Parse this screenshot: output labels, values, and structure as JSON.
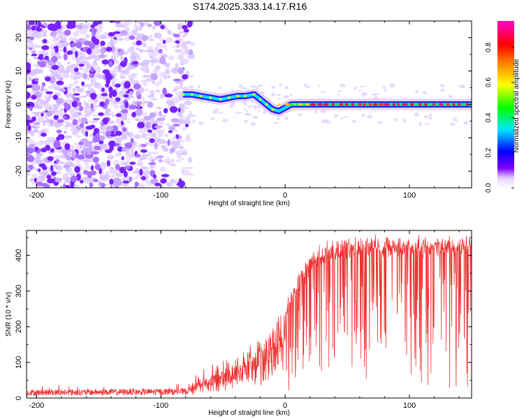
{
  "title": "S174.2025.333.14.17.R16",
  "chart_data": [
    {
      "type": "heatmap",
      "name": "spectrogram",
      "xlabel": "Height of straight line (km)",
      "ylabel": "Frequency (Hz)",
      "xlim": [
        -208,
        150
      ],
      "ylim": [
        -25,
        25
      ],
      "xticks": [
        -200,
        -100,
        0,
        100
      ],
      "yticks": [
        -20,
        -10,
        0,
        10,
        20
      ],
      "colorbar": {
        "label": "Normalized spectral amplitude",
        "range": [
          0.0,
          0.95
        ],
        "ticks": [
          0.0,
          0.2,
          0.4,
          0.6,
          0.8
        ],
        "colors": [
          "#ffffff",
          "#8000ff",
          "#0000ff",
          "#00ffff",
          "#00ff00",
          "#ffff00",
          "#ff8000",
          "#ff0000",
          "#ff00ff"
        ]
      },
      "noise_region_x": [
        -208,
        -75
      ],
      "signal_trace": {
        "x": [
          -82,
          -75,
          -68,
          -60,
          -52,
          -45,
          -38,
          -32,
          -25,
          -20,
          -15,
          -10,
          -5,
          0,
          5,
          10,
          15,
          25,
          35,
          50,
          70,
          90,
          110,
          130,
          150
        ],
        "y": [
          3,
          3,
          2.5,
          2,
          1.5,
          2,
          2.5,
          2.5,
          3,
          1.5,
          0,
          -1.5,
          -2,
          -1,
          0,
          0,
          0,
          0,
          0,
          0,
          0,
          0,
          0,
          0,
          0
        ],
        "amplitude": [
          0.55,
          0.6,
          0.55,
          0.55,
          0.55,
          0.6,
          0.55,
          0.6,
          0.6,
          0.55,
          0.55,
          0.6,
          0.65,
          0.6,
          0.7,
          0.75,
          0.8,
          0.8,
          0.85,
          0.9,
          0.9,
          0.9,
          0.9,
          0.9,
          0.9
        ]
      }
    },
    {
      "type": "line",
      "name": "snr",
      "xlabel": "Height of straight line (km)",
      "ylabel": "SNR (10 * v/v)",
      "xlim": [
        -208,
        150
      ],
      "ylim": [
        0,
        470
      ],
      "xticks": [
        -200,
        -100,
        0,
        100
      ],
      "yticks": [
        0,
        100,
        200,
        300,
        400
      ],
      "color": "#ee3333",
      "envelope": {
        "x": [
          -208,
          -80,
          -70,
          -60,
          -40,
          -20,
          0,
          10,
          20,
          30,
          40,
          60,
          100,
          150
        ],
        "y": [
          15,
          18,
          35,
          60,
          90,
          140,
          230,
          300,
          360,
          390,
          400,
          410,
          410,
          410
        ]
      }
    }
  ]
}
